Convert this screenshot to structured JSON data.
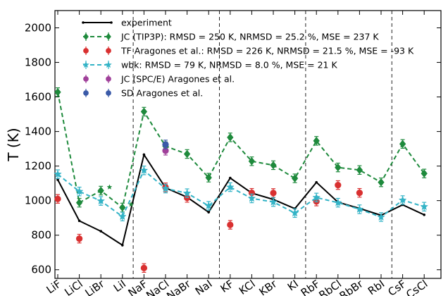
{
  "chart_data": {
    "type": "line",
    "title": "",
    "xlabel": "",
    "ylabel": "T (K)",
    "ylim": [
      550,
      2100
    ],
    "yticks": [
      600,
      800,
      1000,
      1200,
      1400,
      1600,
      1800,
      2000
    ],
    "categories": [
      "LiF",
      "LiCl",
      "LiBr",
      "LiI",
      "NaF",
      "NaCl",
      "NaBr",
      "NaI",
      "KF",
      "KCl",
      "KBr",
      "KI",
      "RbF",
      "RbCl",
      "RbBr",
      "RbI",
      "CsF",
      "CsCl"
    ],
    "group_separators_after": [
      "LiI",
      "NaI",
      "KI",
      "RbI"
    ],
    "grid": false,
    "legend_position": "top",
    "series": [
      {
        "name": "experiment",
        "color": "#000000",
        "marker": "point",
        "line": "solid",
        "values": [
          1121,
          883,
          823,
          742,
          1266,
          1074,
          1020,
          933,
          1131,
          1044,
          1007,
          954,
          1106,
          991,
          955,
          915,
          976,
          918
        ]
      },
      {
        "name": "JC (TIP3P): RMSD = 250 K, NRMSD = 25.2 %, MSE = 237 K",
        "color": "#1e8a3c",
        "marker": "diamond",
        "line": "dashed",
        "errors": 25,
        "values": [
          1628,
          988,
          1058,
          960,
          1515,
          1315,
          1270,
          1133,
          1366,
          1228,
          1205,
          1129,
          1346,
          1192,
          1177,
          1106,
          1328,
          1157
        ]
      },
      {
        "name": "TF Aragones et al.: RMSD = 226 K, NRMSD = 21.5 %, MSE = -93 K",
        "color": "#d93030",
        "marker": "circle",
        "line": "none",
        "errors": 25,
        "values": [
          1010,
          780,
          null,
          null,
          610,
          1077,
          1016,
          null,
          860,
          1045,
          1044,
          null,
          995,
          1090,
          1045,
          null,
          null,
          null
        ]
      },
      {
        "name": "wbk: RMSD = 79 K, NRMSD = 8.0 %, MSE = 21 K",
        "color": "#33b3c6",
        "marker": "star",
        "line": "dashed",
        "errors": 25,
        "values": [
          1153,
          1053,
          998,
          908,
          1175,
          1070,
          1043,
          970,
          1078,
          1013,
          992,
          928,
          1018,
          988,
          950,
          905,
          1003,
          965
        ]
      },
      {
        "name": "JC (SPC/E) Aragones et al.",
        "color": "#a0409a",
        "marker": "circle",
        "line": "none",
        "errors": 25,
        "values": [
          null,
          null,
          null,
          null,
          null,
          1289,
          null,
          null,
          null,
          null,
          null,
          null,
          null,
          null,
          null,
          null,
          null,
          null
        ]
      },
      {
        "name": "SD Aragones et al.",
        "color": "#3a5aa8",
        "marker": "circle",
        "line": "none",
        "errors": 25,
        "values": [
          null,
          null,
          null,
          null,
          null,
          1325,
          null,
          null,
          null,
          null,
          null,
          null,
          null,
          null,
          null,
          null,
          null,
          null
        ]
      }
    ],
    "extra_markers": [
      {
        "series": "JC (TIP3P): RMSD = 250 K, NRMSD = 25.2 %, MSE = 237 K",
        "marker": "star",
        "at": "LiBr",
        "offset": 0.4,
        "value": 1078
      },
      {
        "series": "JC (TIP3P): RMSD = 250 K, NRMSD = 25.2 %, MSE = 237 K",
        "marker": "star",
        "at": "LiI",
        "offset": 0.4,
        "value": 978
      }
    ]
  }
}
